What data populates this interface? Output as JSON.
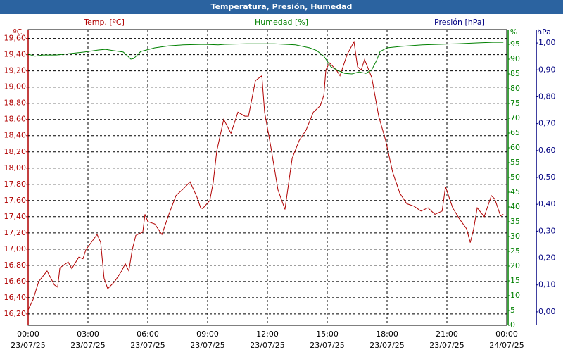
{
  "chart_data": {
    "type": "line",
    "title": "Temperatura, Presión, Humedad",
    "xlim": [
      0,
      24
    ],
    "xticks": [
      {
        "value": 0,
        "label": "00:00"
      },
      {
        "value": 3,
        "label": "03:00"
      },
      {
        "value": 6,
        "label": "06:00"
      },
      {
        "value": 9,
        "label": "09:00"
      },
      {
        "value": 12,
        "label": "12:00"
      },
      {
        "value": 15,
        "label": "15:00"
      },
      {
        "value": 18,
        "label": "18:00"
      },
      {
        "value": 21,
        "label": "21:00"
      },
      {
        "value": 24,
        "label": "00:00"
      }
    ],
    "xtick_dates": [
      "23/07/25",
      "23/07/25",
      "23/07/25",
      "23/07/25",
      "23/07/25",
      "23/07/25",
      "23/07/25",
      "23/07/25",
      "24/07/25"
    ],
    "grid": true,
    "axes": {
      "y": {
        "unit": "ºC",
        "color": "#b00000",
        "lim": [
          16.06,
          19.71
        ],
        "ticks": [
          {
            "value": 16.2,
            "label": "16,20"
          },
          {
            "value": 16.4,
            "label": "16,40"
          },
          {
            "value": 16.6,
            "label": "16,60"
          },
          {
            "value": 16.8,
            "label": "16,80"
          },
          {
            "value": 17.0,
            "label": "17,00"
          },
          {
            "value": 17.2,
            "label": "17,20"
          },
          {
            "value": 17.4,
            "label": "17,40"
          },
          {
            "value": 17.6,
            "label": "17,60"
          },
          {
            "value": 17.8,
            "label": "17,80"
          },
          {
            "value": 18.0,
            "label": "18,00"
          },
          {
            "value": 18.2,
            "label": "18,20"
          },
          {
            "value": 18.4,
            "label": "18,40"
          },
          {
            "value": 18.6,
            "label": "18,60"
          },
          {
            "value": 18.8,
            "label": "18,80"
          },
          {
            "value": 19.0,
            "label": "19,00"
          },
          {
            "value": 19.2,
            "label": "19,20"
          },
          {
            "value": 19.4,
            "label": "19,40"
          },
          {
            "value": 19.6,
            "label": "19,60"
          }
        ]
      },
      "y2": {
        "unit": "%",
        "color": "#008000",
        "lim": [
          0,
          100
        ],
        "ticks": [
          0,
          5,
          10,
          15,
          20,
          25,
          30,
          35,
          40,
          45,
          50,
          55,
          60,
          65,
          70,
          75,
          80,
          85,
          90,
          95
        ]
      },
      "y3": {
        "title": "Presión [hPa]",
        "unit": "hPa",
        "color": "#000080",
        "lim": [
          -0.05,
          1.05
        ],
        "ticks": [
          {
            "value": 0,
            "label": "0,00"
          },
          {
            "value": 0.1,
            "label": "0,10"
          },
          {
            "value": 0.2,
            "label": "0,20"
          },
          {
            "value": 0.3,
            "label": "0,30"
          },
          {
            "value": 0.4,
            "label": "0,40"
          },
          {
            "value": 0.5,
            "label": "0,50"
          },
          {
            "value": 0.6,
            "label": "0,60"
          },
          {
            "value": 0.7,
            "label": "0,70"
          },
          {
            "value": 0.8,
            "label": "0,80"
          },
          {
            "value": 0.9,
            "label": "0,90"
          },
          {
            "value": 1.0,
            "label": "1,00"
          }
        ]
      }
    },
    "series": [
      {
        "name": "Temp. [ºC]",
        "color": "#b00000",
        "axis": "y",
        "x": [
          0.0,
          0.25,
          0.53,
          0.95,
          1.31,
          1.48,
          1.59,
          2.01,
          2.19,
          2.54,
          2.75,
          2.89,
          3.28,
          3.46,
          3.64,
          3.81,
          3.99,
          4.34,
          4.69,
          4.87,
          5.05,
          5.22,
          5.4,
          5.75,
          5.86,
          6.0,
          6.35,
          6.71,
          7.06,
          7.41,
          7.77,
          8.12,
          8.47,
          8.65,
          8.75,
          9.11,
          9.28,
          9.46,
          9.81,
          10.17,
          10.52,
          10.87,
          11.05,
          11.4,
          11.72,
          11.86,
          12.18,
          12.53,
          12.88,
          13.24,
          13.59,
          13.94,
          14.3,
          14.65,
          14.83,
          14.93,
          15.11,
          15.46,
          15.64,
          15.99,
          16.34,
          16.52,
          16.7,
          16.87,
          17.23,
          17.58,
          17.93,
          18.28,
          18.64,
          18.99,
          19.34,
          19.7,
          20.05,
          20.4,
          20.76,
          20.93,
          21.29,
          21.64,
          21.99,
          22.17,
          22.34,
          22.52,
          22.87,
          23.23,
          23.4,
          23.69,
          23.83
        ],
        "values": [
          16.25,
          16.38,
          16.6,
          16.73,
          16.56,
          16.53,
          16.77,
          16.84,
          16.76,
          16.9,
          16.88,
          16.99,
          17.12,
          17.18,
          17.08,
          16.64,
          16.51,
          16.6,
          16.73,
          16.82,
          16.73,
          16.99,
          17.17,
          17.21,
          17.43,
          17.34,
          17.31,
          17.18,
          17.43,
          17.66,
          17.74,
          17.83,
          17.64,
          17.51,
          17.5,
          17.6,
          17.82,
          18.21,
          18.6,
          18.43,
          18.69,
          18.64,
          18.64,
          19.08,
          19.14,
          18.69,
          18.25,
          17.73,
          17.49,
          18.12,
          18.34,
          18.47,
          18.69,
          18.77,
          18.9,
          19.21,
          19.3,
          19.21,
          19.14,
          19.4,
          19.56,
          19.25,
          19.21,
          19.34,
          19.12,
          18.64,
          18.34,
          17.95,
          17.69,
          17.56,
          17.53,
          17.47,
          17.51,
          17.43,
          17.47,
          17.77,
          17.51,
          17.37,
          17.25,
          17.08,
          17.25,
          17.51,
          17.4,
          17.66,
          17.62,
          17.41,
          17.43
        ]
      },
      {
        "name": "Humedad [%]",
        "color": "#008000",
        "axis": "y2",
        "x": [
          0,
          0.35,
          0.71,
          1.41,
          2.12,
          2.82,
          3.53,
          3.88,
          4.24,
          4.77,
          4.94,
          5.15,
          5.29,
          5.65,
          6.35,
          7.06,
          7.77,
          8.82,
          9.53,
          9.88,
          10.94,
          12.35,
          13.41,
          14.12,
          14.47,
          14.83,
          15.0,
          15.18,
          15.53,
          15.88,
          16.24,
          16.59,
          16.94,
          17.23,
          17.47,
          17.65,
          18.0,
          18.71,
          19.77,
          21.53,
          22.59,
          23.3,
          23.83
        ],
        "values": [
          91.7,
          91.0,
          91.4,
          91.4,
          91.9,
          92.4,
          93.1,
          93.3,
          92.9,
          92.4,
          91.4,
          90.0,
          90.2,
          92.6,
          93.8,
          94.5,
          94.8,
          95.0,
          94.8,
          95.0,
          95.2,
          95.2,
          94.8,
          93.8,
          92.9,
          91.0,
          89.3,
          87.4,
          86.2,
          85.2,
          85.0,
          85.7,
          85.2,
          86.4,
          89.5,
          92.6,
          93.8,
          94.3,
          94.8,
          95.2,
          95.5,
          95.7,
          95.7
        ]
      }
    ]
  }
}
